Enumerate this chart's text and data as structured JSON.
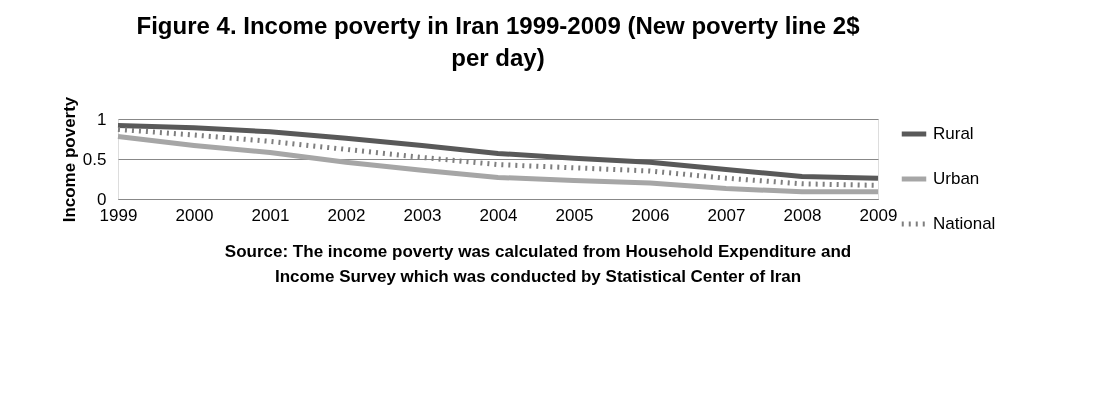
{
  "chart_data": {
    "type": "line",
    "title": [
      "Figure 4. Income poverty in Iran 1999-2009 (New poverty line 2$",
      "per day)"
    ],
    "ylabel": "Income poverty",
    "categories": [
      "1999",
      "2000",
      "2001",
      "2002",
      "2003",
      "2004",
      "2005",
      "2006",
      "2007",
      "2008",
      "2009"
    ],
    "series": [
      {
        "name": "Rural",
        "color": "#595959",
        "line_style": "solid",
        "values": [
          0.92,
          0.89,
          0.84,
          0.76,
          0.67,
          0.57,
          0.51,
          0.46,
          0.37,
          0.28,
          0.26
        ]
      },
      {
        "name": "Urban",
        "color": "#a6a6a6",
        "line_style": "solid",
        "values": [
          0.78,
          0.67,
          0.58,
          0.46,
          0.36,
          0.27,
          0.23,
          0.2,
          0.13,
          0.09,
          0.09
        ]
      },
      {
        "name": "National",
        "color": "#7f7f7f",
        "line_style": "dotted",
        "values": [
          0.87,
          0.8,
          0.72,
          0.62,
          0.52,
          0.43,
          0.39,
          0.35,
          0.26,
          0.19,
          0.17
        ]
      }
    ],
    "ylim": [
      0,
      1
    ],
    "yticks": [
      0,
      0.5,
      1
    ],
    "grid": "y",
    "legend": "right",
    "marker": "none",
    "annotations": [
      "Source: The income poverty was calculated from Household  Expenditure and Income Survey which was conducted by Statistical Center of Iran"
    ]
  }
}
